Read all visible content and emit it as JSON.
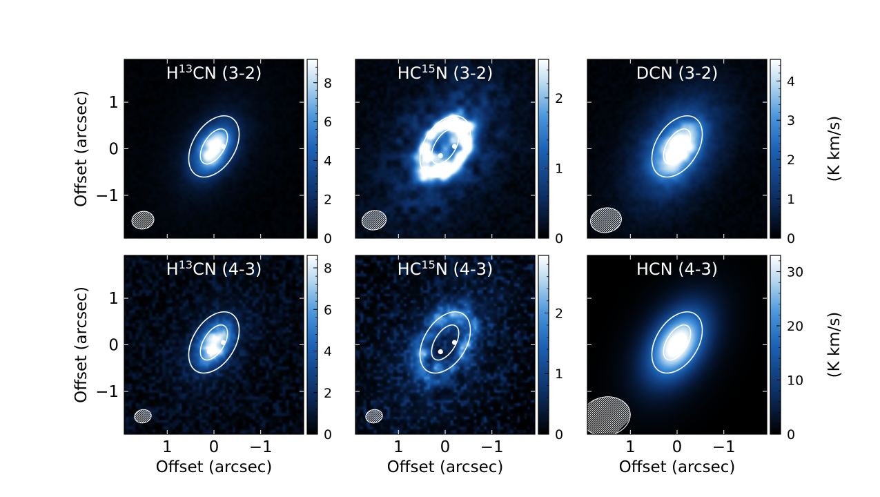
{
  "figure": {
    "axis_label": "Offset (arcsec)",
    "colorbar_label": "(K km/s)"
  },
  "chart_data": [
    {
      "type": "heatmap",
      "title": "H13CN (3-2)",
      "title_parts": {
        "pre": "H",
        "sup": "13",
        "post": "CN (3-2)"
      },
      "xlabel": "",
      "ylabel": "Offset (arcsec)",
      "xlim": [
        1.92,
        -1.92
      ],
      "ylim": [
        -1.92,
        1.92
      ],
      "xticks": [],
      "yticks": [
        1,
        0,
        -1
      ],
      "colorbar": {
        "min": 0,
        "max": 9.2,
        "ticks": [
          0,
          2,
          4,
          6,
          8
        ]
      },
      "morphology": "compact",
      "intensity_scale": 1.0,
      "beam_size": 0.5,
      "stars": [
        [
          0.1,
          -0.15
        ],
        [
          -0.2,
          0.05
        ]
      ],
      "contours": [
        {
          "a": 0.72,
          "b": 0.45,
          "pa": 32
        },
        {
          "a": 0.42,
          "b": 0.22,
          "pa": 32
        }
      ]
    },
    {
      "type": "heatmap",
      "title": "HC15N (3-2)",
      "title_parts": {
        "pre": "HC",
        "sup": "15",
        "post": "N (3-2)"
      },
      "xlabel": "",
      "ylabel": "",
      "xlim": [
        1.92,
        -1.92
      ],
      "ylim": [
        -1.92,
        1.92
      ],
      "xticks": [],
      "yticks": [],
      "colorbar": {
        "min": 0,
        "max": 2.55,
        "ticks": [
          0,
          1,
          2
        ]
      },
      "morphology": "ring",
      "intensity_scale": 1.0,
      "beam_size": 0.55,
      "stars": [
        [
          0.1,
          -0.15
        ],
        [
          -0.2,
          0.05
        ]
      ],
      "contours": [
        {
          "a": 0.72,
          "b": 0.45,
          "pa": 32
        },
        {
          "a": 0.42,
          "b": 0.22,
          "pa": 32
        }
      ]
    },
    {
      "type": "heatmap",
      "title": "DCN (3-2)",
      "title_parts": {
        "pre": "DCN (3-2)",
        "sup": "",
        "post": ""
      },
      "xlabel": "",
      "ylabel": "",
      "xlim": [
        1.92,
        -1.92
      ],
      "ylim": [
        -1.92,
        1.92
      ],
      "xticks": [],
      "yticks": [],
      "colorbar": {
        "min": 0,
        "max": 4.55,
        "ticks": [
          0,
          1,
          2,
          3,
          4
        ],
        "label": "(K km/s)"
      },
      "morphology": "broad",
      "intensity_scale": 1.0,
      "beam_size": 0.7,
      "stars": [
        [
          0.1,
          -0.15
        ],
        [
          -0.2,
          0.05
        ]
      ],
      "contours": [
        {
          "a": 0.72,
          "b": 0.45,
          "pa": 32
        },
        {
          "a": 0.42,
          "b": 0.22,
          "pa": 32
        }
      ]
    },
    {
      "type": "heatmap",
      "title": "H13CN (4-3)",
      "title_parts": {
        "pre": "H",
        "sup": "13",
        "post": "CN (4-3)"
      },
      "xlabel": "Offset (arcsec)",
      "ylabel": "Offset (arcsec)",
      "xlim": [
        1.92,
        -1.92
      ],
      "ylim": [
        -1.92,
        1.92
      ],
      "xticks": [
        1,
        0,
        -1
      ],
      "yticks": [
        1,
        0,
        -1
      ],
      "colorbar": {
        "min": 0,
        "max": 8.6,
        "ticks": [
          0,
          2,
          4,
          6,
          8
        ]
      },
      "morphology": "noisy-compact",
      "intensity_scale": 1.0,
      "beam_size": 0.38,
      "stars": [
        [
          0.1,
          -0.15
        ],
        [
          -0.2,
          0.05
        ]
      ],
      "contours": [
        {
          "a": 0.72,
          "b": 0.45,
          "pa": 32
        },
        {
          "a": 0.42,
          "b": 0.22,
          "pa": 32
        }
      ]
    },
    {
      "type": "heatmap",
      "title": "HC15N (4-3)",
      "title_parts": {
        "pre": "HC",
        "sup": "15",
        "post": "N (4-3)"
      },
      "xlabel": "Offset (arcsec)",
      "ylabel": "",
      "xlim": [
        1.92,
        -1.92
      ],
      "ylim": [
        -1.92,
        1.92
      ],
      "xticks": [
        1,
        0,
        -1
      ],
      "yticks": [],
      "colorbar": {
        "min": 0,
        "max": 2.95,
        "ticks": [
          0,
          1,
          2
        ]
      },
      "morphology": "noisy-ring",
      "intensity_scale": 0.75,
      "beam_size": 0.38,
      "stars": [
        [
          0.1,
          -0.15
        ],
        [
          -0.2,
          0.05
        ]
      ],
      "contours": [
        {
          "a": 0.72,
          "b": 0.45,
          "pa": 32
        },
        {
          "a": 0.42,
          "b": 0.22,
          "pa": 32
        }
      ]
    },
    {
      "type": "heatmap",
      "title": "HCN (4-3)",
      "title_parts": {
        "pre": "HCN (4-3)",
        "sup": "",
        "post": ""
      },
      "xlabel": "Offset (arcsec)",
      "ylabel": "",
      "xlim": [
        1.92,
        -1.92
      ],
      "ylim": [
        -1.92,
        1.92
      ],
      "xticks": [
        1,
        0,
        -1
      ],
      "yticks": [],
      "colorbar": {
        "min": 0,
        "max": 33,
        "ticks": [
          0,
          10,
          20,
          30
        ],
        "label": "(K km/s)"
      },
      "morphology": "smooth",
      "intensity_scale": 1.0,
      "beam_size": 1.1,
      "stars": [
        [
          0.1,
          -0.15
        ],
        [
          -0.2,
          0.05
        ]
      ],
      "contours": [
        {
          "a": 0.72,
          "b": 0.45,
          "pa": 32
        },
        {
          "a": 0.42,
          "b": 0.22,
          "pa": 32
        }
      ]
    }
  ],
  "colors": {
    "colormap": [
      "#000000",
      "#0c2c60",
      "#1c63b6",
      "#4b96dc",
      "#b6d8ef",
      "#ffffff"
    ],
    "contour": "#ffffff",
    "frame": "#000000",
    "text": "#000000"
  }
}
